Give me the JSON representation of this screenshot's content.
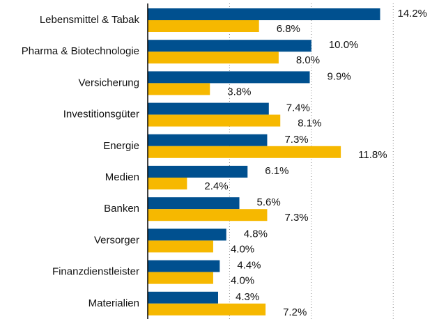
{
  "chart_data": {
    "type": "hbar",
    "categories": [
      "Lebensmittel & Tabak",
      "Pharma & Biotechnologie",
      "Versicherung",
      "Investitionsgüter",
      "Energie",
      "Medien",
      "Banken",
      "Versorger",
      "Finanzdienstleister",
      "Materialien"
    ],
    "series": [
      {
        "color": "#00508f",
        "values": [
          14.2,
          10.0,
          9.9,
          7.4,
          7.3,
          6.1,
          5.6,
          4.8,
          4.4,
          4.3
        ],
        "value_labels": [
          "14.2%",
          "10.0%",
          "9.9%",
          "7.4%",
          "7.3%",
          "6.1%",
          "5.6%",
          "4.8%",
          "4.4%",
          "4.3%"
        ]
      },
      {
        "color": "#f6b800",
        "values": [
          6.8,
          8.0,
          3.8,
          8.1,
          11.8,
          2.4,
          7.3,
          4.0,
          4.0,
          7.2
        ],
        "value_labels": [
          "6.8%",
          "8.0%",
          "3.8%",
          "8.1%",
          "11.8%",
          "2.4%",
          "7.3%",
          "4.0%",
          "4.0%",
          "7.2%"
        ]
      }
    ],
    "xlim": [
      0,
      17.5
    ],
    "xticks": [
      0,
      5,
      10,
      15
    ],
    "grid": true
  }
}
